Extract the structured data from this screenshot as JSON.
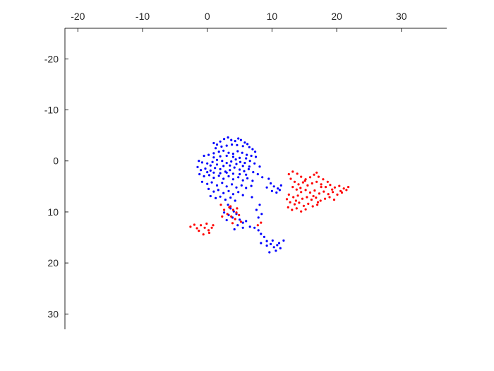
{
  "chart_data": {
    "type": "scatter",
    "title": "",
    "xlabel": "",
    "ylabel": "",
    "xlim": [
      -22,
      37
    ],
    "ylim": [
      -26,
      33
    ],
    "y_reversed": true,
    "x_axis_location": "top",
    "box": false,
    "grid": false,
    "x_ticks": [
      -20,
      -10,
      0,
      10,
      20,
      30
    ],
    "y_ticks": [
      -20,
      -10,
      0,
      10,
      20,
      30
    ],
    "x_tick_labels": [
      "-20",
      "-10",
      "0",
      "10",
      "20",
      "30"
    ],
    "y_tick_labels": [
      "-20",
      "-10",
      "0",
      "10",
      "20",
      "30"
    ],
    "series": [
      {
        "color": "#0000ff",
        "points": [
          [
            1,
            -3.5
          ],
          [
            1.5,
            -3.2
          ],
          [
            2,
            -3.8
          ],
          [
            2.6,
            -4.3
          ],
          [
            3.2,
            -4.6
          ],
          [
            3.7,
            -4.1
          ],
          [
            4.3,
            -3.9
          ],
          [
            4.8,
            -4.4
          ],
          [
            5.2,
            -4.1
          ],
          [
            5.8,
            -3.6
          ],
          [
            6.2,
            -3.3
          ],
          [
            1.3,
            -2.5
          ],
          [
            2.2,
            -2.8
          ],
          [
            3,
            -3
          ],
          [
            3.8,
            -3.2
          ],
          [
            4.6,
            -3.1
          ],
          [
            5.5,
            -2.9
          ],
          [
            6.5,
            -2.7
          ],
          [
            7,
            -2.3
          ],
          [
            7.4,
            -1.8
          ],
          [
            -0.5,
            -1
          ],
          [
            0.2,
            -1.2
          ],
          [
            1,
            -1.5
          ],
          [
            1.8,
            -1.8
          ],
          [
            2.5,
            -2
          ],
          [
            3.3,
            -1.6
          ],
          [
            4,
            -1.4
          ],
          [
            4.7,
            -1.9
          ],
          [
            5.4,
            -1.6
          ],
          [
            6.1,
            -1.2
          ],
          [
            6.8,
            -1
          ],
          [
            7.5,
            -0.8
          ],
          [
            -1.3,
            0
          ],
          [
            -0.8,
            0.3
          ],
          [
            0,
            0.5
          ],
          [
            0.8,
            0.2
          ],
          [
            1.5,
            -0.2
          ],
          [
            2.3,
            0
          ],
          [
            3,
            0.4
          ],
          [
            3.7,
            0.1
          ],
          [
            4.4,
            -0.3
          ],
          [
            5.1,
            0.2
          ],
          [
            5.8,
            0.4
          ],
          [
            6.6,
            0
          ],
          [
            7.3,
            0.5
          ],
          [
            8.1,
            1.1
          ],
          [
            -1.5,
            1.2
          ],
          [
            -1,
            1.8
          ],
          [
            -0.3,
            1.5
          ],
          [
            0.5,
            1.9
          ],
          [
            1.2,
            1.4
          ],
          [
            2,
            1.6
          ],
          [
            2.8,
            2.1
          ],
          [
            3.5,
            1.8
          ],
          [
            4.2,
            1.3
          ],
          [
            5,
            1.7
          ],
          [
            5.7,
            2
          ],
          [
            6.4,
            1.6
          ],
          [
            7.1,
            2.2
          ],
          [
            7.8,
            2.6
          ],
          [
            8.5,
            3.2
          ],
          [
            -1.2,
            2.6
          ],
          [
            -0.5,
            3
          ],
          [
            0.3,
            2.8
          ],
          [
            1,
            3.3
          ],
          [
            1.8,
            2.9
          ],
          [
            2.5,
            3.5
          ],
          [
            3.3,
            3
          ],
          [
            4,
            3.6
          ],
          [
            4.8,
            3.2
          ],
          [
            5.5,
            3.8
          ],
          [
            6.2,
            3.4
          ],
          [
            7,
            3.9
          ],
          [
            -0.8,
            4.1
          ],
          [
            0,
            4.5
          ],
          [
            0.7,
            4.2
          ],
          [
            1.5,
            4.8
          ],
          [
            2.3,
            4.3
          ],
          [
            3,
            5
          ],
          [
            3.8,
            4.6
          ],
          [
            4.5,
            5.2
          ],
          [
            5.3,
            4.8
          ],
          [
            6,
            5.3
          ],
          [
            6.8,
            4.9
          ],
          [
            0.2,
            5.5
          ],
          [
            1,
            6
          ],
          [
            1.7,
            5.7
          ],
          [
            2.5,
            6.3
          ],
          [
            3.3,
            5.9
          ],
          [
            4,
            6.5
          ],
          [
            4.8,
            6.1
          ],
          [
            5.5,
            6.7
          ],
          [
            0.5,
            6.9
          ],
          [
            1.3,
            7.3
          ],
          [
            2,
            7
          ],
          [
            2.8,
            7.6
          ],
          [
            3.6,
            7.2
          ],
          [
            4.3,
            7.8
          ],
          [
            9.5,
            3.5
          ],
          [
            9.8,
            4.4
          ],
          [
            10.3,
            5
          ],
          [
            10.9,
            5.4
          ],
          [
            11.4,
            4.8
          ],
          [
            10,
            5.9
          ],
          [
            10.7,
            6.2
          ],
          [
            11.2,
            5.7
          ],
          [
            9.2,
            5.2
          ],
          [
            1,
            -0.7
          ],
          [
            2,
            -0.9
          ],
          [
            3,
            -1
          ],
          [
            4,
            -0.8
          ],
          [
            5,
            -0.6
          ],
          [
            6,
            -0.5
          ],
          [
            0.5,
            0.9
          ],
          [
            1.5,
            0.7
          ],
          [
            2.5,
            1
          ],
          [
            3.5,
            0.9
          ],
          [
            4.5,
            0.6
          ],
          [
            5.5,
            1
          ],
          [
            6.5,
            1.1
          ],
          [
            0,
            2.2
          ],
          [
            1,
            2.3
          ],
          [
            2,
            2.4
          ],
          [
            3,
            2.3
          ],
          [
            4,
            2.5
          ],
          [
            5,
            2.6
          ],
          [
            6,
            2.7
          ],
          [
            3.2,
            8.6
          ],
          [
            3.6,
            9.3
          ],
          [
            4.1,
            9.9
          ],
          [
            3.3,
            10.6
          ],
          [
            3.9,
            11.1
          ],
          [
            4.5,
            10.4
          ],
          [
            5,
            11.5
          ],
          [
            5.5,
            12.1
          ],
          [
            4.7,
            12.6
          ],
          [
            6,
            11.8
          ],
          [
            3,
            11.6
          ],
          [
            2.6,
            10.1
          ],
          [
            5.5,
            13.1
          ],
          [
            4.2,
            13.4
          ],
          [
            6.6,
            12.9
          ],
          [
            7.3,
            13.1
          ],
          [
            7.9,
            13.6
          ],
          [
            8.3,
            14.3
          ],
          [
            8.8,
            14.9
          ],
          [
            9.2,
            15.7
          ],
          [
            9.8,
            16.3
          ],
          [
            10.3,
            16.9
          ],
          [
            10.8,
            16.5
          ],
          [
            11.3,
            17.1
          ],
          [
            10.6,
            17.6
          ],
          [
            9.6,
            17.9
          ],
          [
            11.1,
            16.1
          ],
          [
            11.8,
            15.6
          ],
          [
            8.3,
            16.1
          ],
          [
            9.2,
            16.6
          ],
          [
            10.1,
            15.6
          ],
          [
            7.9,
            11.1
          ],
          [
            6.9,
            7.1
          ],
          [
            8.1,
            8.6
          ],
          [
            7.6,
            9.6
          ],
          [
            8.4,
            10.4
          ]
        ]
      },
      {
        "color": "#ff0000",
        "points": [
          [
            12.6,
            2.6
          ],
          [
            13.2,
            2.1
          ],
          [
            13.9,
            2.5
          ],
          [
            14.5,
            3.1
          ],
          [
            15.2,
            3.6
          ],
          [
            15.9,
            3.2
          ],
          [
            16.5,
            2.7
          ],
          [
            17.2,
            3.1
          ],
          [
            12.9,
            3.5
          ],
          [
            13.5,
            4.1
          ],
          [
            14.1,
            4.6
          ],
          [
            14.8,
            4.2
          ],
          [
            15.5,
            4.8
          ],
          [
            16.2,
            4.4
          ],
          [
            16.9,
            4.1
          ],
          [
            17.6,
            4.6
          ],
          [
            18.3,
            5.1
          ],
          [
            19,
            4.7
          ],
          [
            19.7,
            5.2
          ],
          [
            20.4,
            4.9
          ],
          [
            21.1,
            5.4
          ],
          [
            21.8,
            5.1
          ],
          [
            13.2,
            5.1
          ],
          [
            13.8,
            5.6
          ],
          [
            14.5,
            6.1
          ],
          [
            15.2,
            5.7
          ],
          [
            15.9,
            6.2
          ],
          [
            16.6,
            5.8
          ],
          [
            17.3,
            6.4
          ],
          [
            18,
            6
          ],
          [
            18.7,
            6.5
          ],
          [
            19.4,
            6.1
          ],
          [
            20.1,
            6.6
          ],
          [
            20.8,
            6.2
          ],
          [
            21.5,
            5.7
          ],
          [
            12.6,
            6.6
          ],
          [
            13.3,
            7.1
          ],
          [
            14,
            6.8
          ],
          [
            14.7,
            7.4
          ],
          [
            15.4,
            7.1
          ],
          [
            16.1,
            7.6
          ],
          [
            16.8,
            7.2
          ],
          [
            17.5,
            7.8
          ],
          [
            18.2,
            7.4
          ],
          [
            18.9,
            7.1
          ],
          [
            19.6,
            7.6
          ],
          [
            12.8,
            8.1
          ],
          [
            13.5,
            8.5
          ],
          [
            14.2,
            8.2
          ],
          [
            14.9,
            8.8
          ],
          [
            15.6,
            8.4
          ],
          [
            16.3,
            8.9
          ],
          [
            17,
            8.6
          ],
          [
            12.5,
            9.1
          ],
          [
            13.1,
            9.6
          ],
          [
            13.8,
            9.3
          ],
          [
            14.5,
            9.9
          ],
          [
            15.2,
            9.5
          ],
          [
            16.9,
            2.3
          ],
          [
            17.9,
            3.6
          ],
          [
            18.6,
            4.1
          ],
          [
            19.3,
            5.6
          ],
          [
            20.6,
            5.9
          ],
          [
            17.6,
            5.1
          ],
          [
            16.4,
            6.9
          ],
          [
            15.1,
            3.9
          ],
          [
            14.4,
            5.3
          ],
          [
            13.7,
            7.8
          ],
          [
            12.3,
            7.5
          ],
          [
            17.1,
            8.1
          ],
          [
            3.4,
            9.1
          ],
          [
            4,
            9.6
          ],
          [
            4.5,
            10.1
          ],
          [
            3.1,
            10.4
          ],
          [
            3.7,
            10.9
          ],
          [
            4.3,
            11.4
          ],
          [
            4.9,
            10.6
          ],
          [
            5.2,
            11.9
          ],
          [
            3.9,
            12.2
          ],
          [
            2.6,
            9.6
          ],
          [
            3.6,
            8.9
          ],
          [
            4.6,
            9.3
          ],
          [
            2.3,
            10.9
          ],
          [
            -2.6,
            12.9
          ],
          [
            -2,
            12.5
          ],
          [
            -1.6,
            13.2
          ],
          [
            -1,
            12.6
          ],
          [
            -0.4,
            13.1
          ],
          [
            0.2,
            13.6
          ],
          [
            0.7,
            13.1
          ],
          [
            0.3,
            14.1
          ],
          [
            -0.6,
            14.4
          ],
          [
            -1.3,
            13.7
          ],
          [
            0.9,
            12.6
          ],
          [
            -0.1,
            12.3
          ],
          [
            7.8,
            12.6
          ],
          [
            8.3,
            12.1
          ],
          [
            2.1,
            8.6
          ]
        ]
      }
    ]
  }
}
